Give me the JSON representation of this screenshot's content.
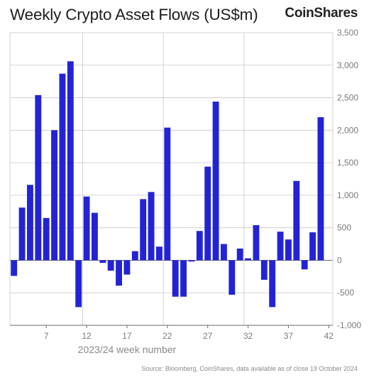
{
  "header": {
    "title": "Weekly Crypto Asset Flows (US$m)",
    "brand": "CoinShares"
  },
  "footer": {
    "source": "Source: Bloomberg, CoinShares, data available as of close 19 October 2024"
  },
  "colors": {
    "bar": "#2323d6",
    "grid": "#c8c8c8",
    "axis": "#6a6a6a"
  },
  "chart_data": {
    "type": "bar",
    "title": "Weekly Crypto Asset Flows (US$m)",
    "xlabel": "2023/24 week number",
    "ylabel": "",
    "ylim": [
      -1000,
      3500
    ],
    "yticks": [
      -1000,
      -500,
      0,
      500,
      1000,
      1500,
      2000,
      2500,
      3000,
      3500
    ],
    "ytick_labels": [
      "-1,000",
      "-500",
      "0",
      "500",
      "1,000",
      "1,500",
      "2,000",
      "2,500",
      "3,000",
      "3,500"
    ],
    "xticks": [
      7,
      12,
      17,
      22,
      27,
      32,
      37,
      42
    ],
    "xtick_labels": [
      "7",
      "12",
      "17",
      "22",
      "27",
      "32",
      "37",
      "42"
    ],
    "vertical_grid_at": [
      11.5,
      21.5,
      31.5
    ],
    "x_range": [
      2.5,
      42.5
    ],
    "categories": [
      3,
      4,
      5,
      6,
      7,
      8,
      9,
      10,
      11,
      12,
      13,
      14,
      15,
      16,
      17,
      18,
      19,
      20,
      21,
      22,
      23,
      24,
      25,
      26,
      27,
      28,
      29,
      30,
      31,
      32,
      33,
      34,
      35,
      36,
      37,
      38,
      39,
      40,
      41,
      42
    ],
    "values": [
      -240,
      810,
      1160,
      2540,
      650,
      2000,
      2870,
      3060,
      -720,
      980,
      730,
      -40,
      -160,
      -390,
      -220,
      140,
      940,
      1050,
      210,
      2040,
      -560,
      -560,
      -20,
      450,
      1440,
      2440,
      250,
      -530,
      180,
      30,
      540,
      -300,
      -720,
      440,
      320,
      1220,
      -140,
      430,
      2200,
      0
    ]
  }
}
